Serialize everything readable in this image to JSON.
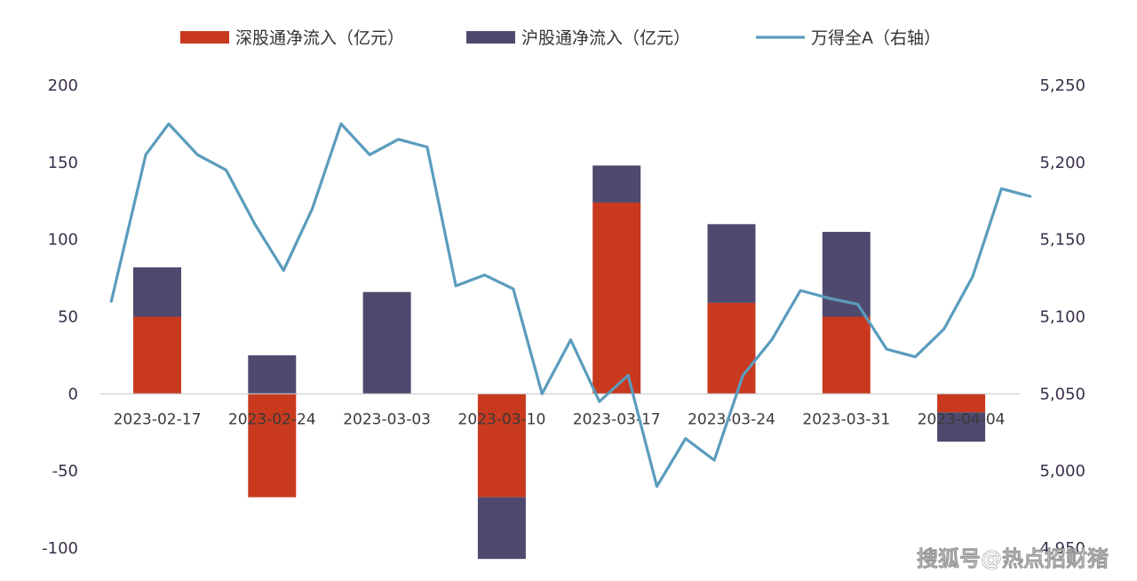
{
  "chart_data": {
    "type": "bar",
    "title": "",
    "categories": [
      "2023-02-17",
      "2023-02-24",
      "2023-03-03",
      "2023-03-10",
      "2023-03-17",
      "2023-03-24",
      "2023-03-31",
      "2023-04-04"
    ],
    "series": [
      {
        "name": "深股通净流入（亿元）",
        "type": "bar",
        "stack": "flow",
        "axis": "left",
        "color": "#c8391e",
        "values": [
          50,
          -67,
          0,
          -67,
          124,
          59,
          50,
          -12
        ]
      },
      {
        "name": "沪股通净流入（亿元）",
        "type": "bar",
        "stack": "flow",
        "axis": "left",
        "color": "#4e4a6e",
        "values": [
          32,
          25,
          66,
          -40,
          24,
          51,
          55,
          -19
        ]
      },
      {
        "name": "万得全A（右轴）",
        "type": "line",
        "axis": "right",
        "color": "#5a9cbd",
        "x": [
          -0.4,
          -0.1,
          0.1,
          0.35,
          0.6,
          0.85,
          1.1,
          1.35,
          1.6,
          1.85,
          2.1,
          2.35,
          2.6,
          2.85,
          3.1,
          3.35,
          3.6,
          3.85,
          4.1,
          4.35,
          4.6,
          4.85,
          5.1,
          5.35,
          5.6,
          5.85,
          6.1,
          6.35,
          6.6,
          6.85,
          7.1,
          7.35,
          7.6
        ],
        "values": [
          5110,
          5205,
          5225,
          5205,
          5195,
          5160,
          5130,
          5170,
          5225,
          5205,
          5215,
          5210,
          5120,
          5127,
          5118,
          5050,
          5085,
          5045,
          5062,
          4990,
          5021,
          5007,
          5062,
          5085,
          5117,
          5112,
          5108,
          5079,
          5074,
          5092,
          5126,
          5183,
          5178
        ]
      }
    ],
    "y_left": {
      "min": -100,
      "max": 200,
      "ticks": [
        -100,
        -50,
        0,
        50,
        100,
        150,
        200
      ],
      "tick_labels": [
        "-100",
        "-50",
        "0",
        "50",
        "100",
        "150",
        "200"
      ]
    },
    "y_right": {
      "min": 4950,
      "max": 5250,
      "ticks": [
        4950,
        5000,
        5050,
        5100,
        5150,
        5200,
        5250
      ],
      "tick_labels": [
        "4,950",
        "5,000",
        "5,050",
        "5,100",
        "5,150",
        "5,200",
        "5,250"
      ]
    },
    "legend": {
      "placement": "top-center"
    },
    "grid": false
  },
  "watermark": "搜狐号@热点招财猪"
}
